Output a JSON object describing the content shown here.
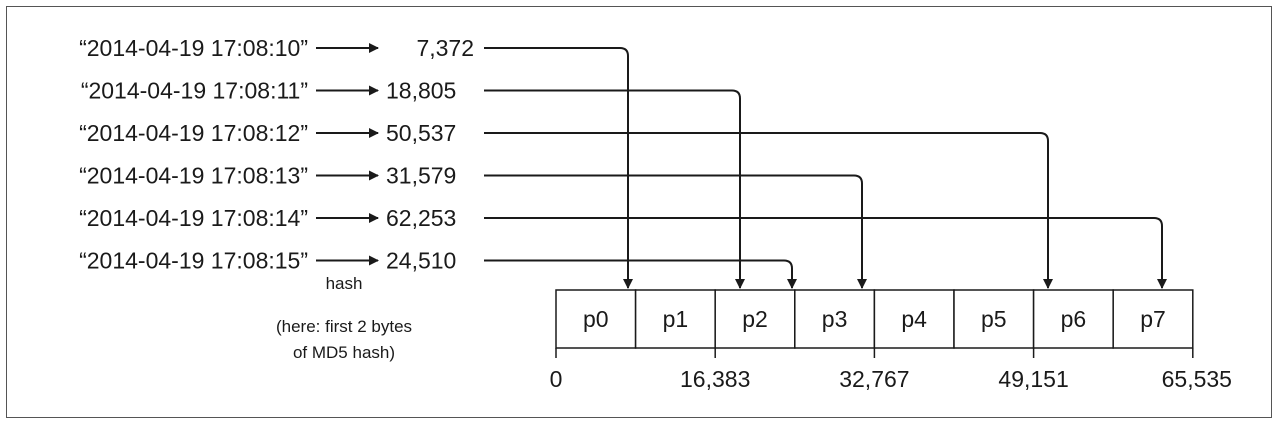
{
  "rows": [
    {
      "timestamp": "“2014-04-19 17:08:10”",
      "value": "7,372",
      "partition": 0
    },
    {
      "timestamp": "“2014-04-19 17:08:11”",
      "value": "18,805",
      "partition": 2
    },
    {
      "timestamp": "“2014-04-19 17:08:12”",
      "value": "50,537",
      "partition": 6
    },
    {
      "timestamp": "“2014-04-19 17:08:13”",
      "value": "31,579",
      "partition": 3
    },
    {
      "timestamp": "“2014-04-19 17:08:14”",
      "value": "62,253",
      "partition": 7
    },
    {
      "timestamp": "“2014-04-19 17:08:15”",
      "value": "24,510",
      "partition": 2
    }
  ],
  "hash_label": "hash",
  "hash_note": [
    "(here: first 2 bytes",
    "of MD5 hash)"
  ],
  "partitions": [
    "p0",
    "p1",
    "p2",
    "p3",
    "p4",
    "p5",
    "p6",
    "p7"
  ],
  "ticks": [
    "0",
    "16,383",
    "32,767",
    "49,151",
    "65,535"
  ]
}
